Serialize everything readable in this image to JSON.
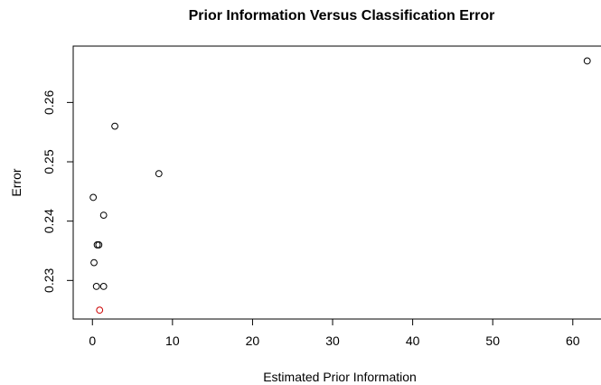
{
  "chart_data": {
    "type": "scatter",
    "title": "Prior Information Versus Classification Error",
    "xlabel": "Estimated Prior Information",
    "ylabel": "Error",
    "xlim": [
      -2.4,
      64.2
    ],
    "ylim": [
      0.2235,
      0.2695
    ],
    "xticks": [
      0,
      10,
      20,
      30,
      40,
      50,
      60
    ],
    "xtick_labels": [
      "0",
      "10",
      "20",
      "30",
      "40",
      "50",
      "60"
    ],
    "yticks": [
      0.23,
      0.24,
      0.25,
      0.26
    ],
    "ytick_labels": [
      "0.23",
      "0.24",
      "0.25",
      "0.26"
    ],
    "grid": false,
    "points": [
      {
        "x": 61.8,
        "y": 0.267,
        "color": "#000000"
      },
      {
        "x": 2.8,
        "y": 0.256,
        "color": "#000000"
      },
      {
        "x": 8.3,
        "y": 0.248,
        "color": "#000000"
      },
      {
        "x": 0.1,
        "y": 0.244,
        "color": "#000000"
      },
      {
        "x": 1.4,
        "y": 0.241,
        "color": "#000000"
      },
      {
        "x": 0.6,
        "y": 0.236,
        "color": "#000000"
      },
      {
        "x": 0.8,
        "y": 0.236,
        "color": "#000000"
      },
      {
        "x": 0.2,
        "y": 0.233,
        "color": "#000000"
      },
      {
        "x": 0.5,
        "y": 0.229,
        "color": "#000000"
      },
      {
        "x": 1.4,
        "y": 0.229,
        "color": "#000000"
      },
      {
        "x": 0.9,
        "y": 0.225,
        "color": "#cc0000"
      }
    ]
  }
}
